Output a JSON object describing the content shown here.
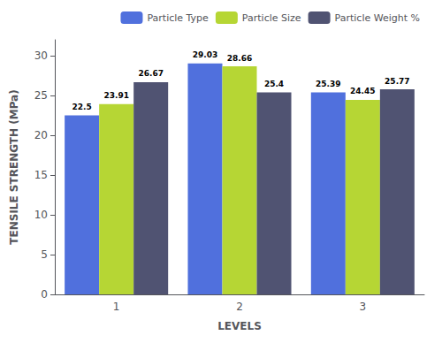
{
  "chart_data": {
    "type": "bar",
    "xlabel": "LEVELS",
    "ylabel": "TENSILE STRENGTH (MPa)",
    "categories": [
      "1",
      "2",
      "3"
    ],
    "series": [
      {
        "name": "Particle Type",
        "values": [
          22.5,
          29.03,
          25.39
        ]
      },
      {
        "name": "Particle Size",
        "values": [
          23.91,
          28.66,
          24.45
        ]
      },
      {
        "name": "Particle Weight %",
        "values": [
          26.67,
          25.4,
          25.77
        ]
      }
    ],
    "ylim": [
      0,
      32
    ],
    "yticks": [
      0,
      5,
      10,
      15,
      20,
      25,
      30
    ],
    "grid": false,
    "legend": "upper right",
    "data_labels": true
  }
}
